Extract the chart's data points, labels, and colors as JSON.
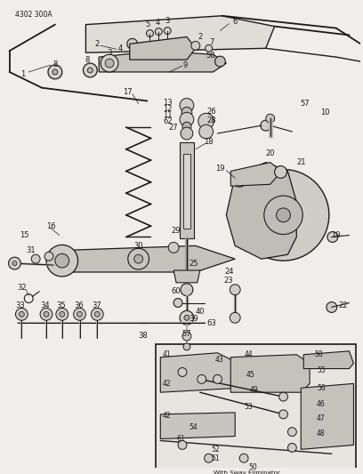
{
  "title": "4302 300A",
  "bg_color": "#f0eeeb",
  "line_color": "#1a1a1a",
  "fig_width": 4.08,
  "fig_height": 5.33,
  "dpi": 100,
  "inset_label": "With Sway Eliminator"
}
